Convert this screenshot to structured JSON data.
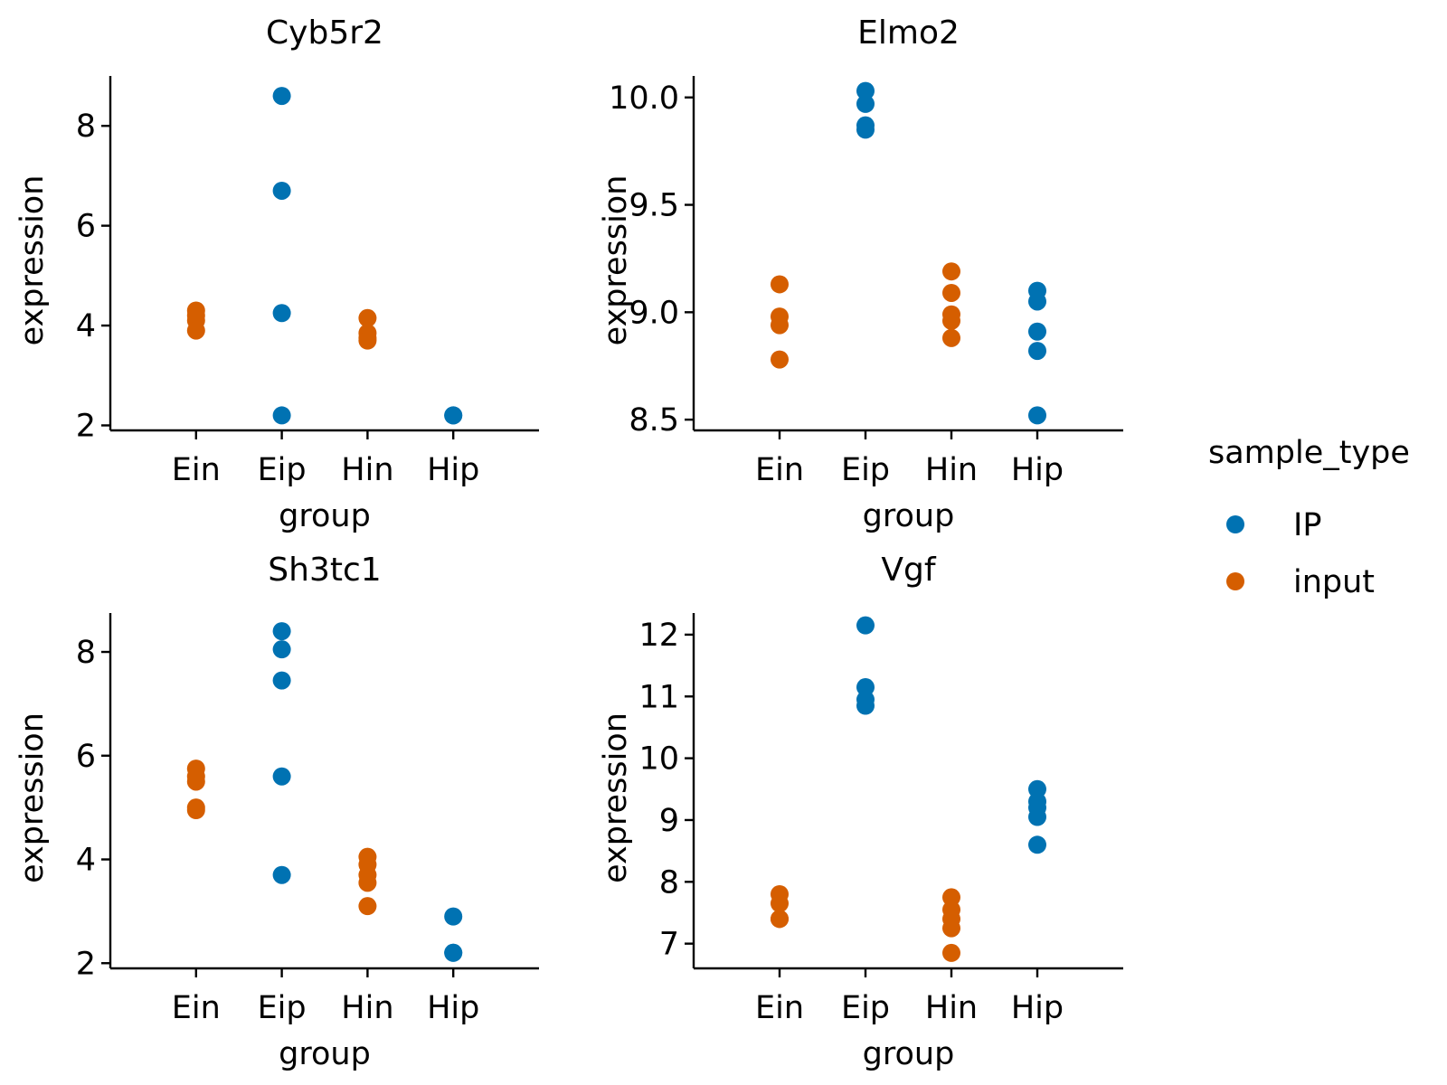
{
  "legend": {
    "title": "sample_type",
    "entries": [
      {
        "label": "IP",
        "color": "#0072B2"
      },
      {
        "label": "input",
        "color": "#D55E00"
      }
    ]
  },
  "chart_data": [
    {
      "type": "scatter",
      "title": "Cyb5r2",
      "xlabel": "group",
      "ylabel": "expression",
      "categories": [
        "Ein",
        "Eip",
        "Hin",
        "Hip"
      ],
      "ylim": [
        1.9,
        9.0
      ],
      "yticks": [
        2,
        4,
        6,
        8
      ],
      "ytick_labels": [
        "2",
        "4",
        "6",
        "8"
      ],
      "series": [
        {
          "name": "IP",
          "color": "#0072B2",
          "points": [
            [
              "Eip",
              8.6
            ],
            [
              "Eip",
              6.7
            ],
            [
              "Eip",
              4.25
            ],
            [
              "Eip",
              2.2
            ],
            [
              "Hip",
              2.2
            ],
            [
              "Hip",
              2.2
            ]
          ]
        },
        {
          "name": "input",
          "color": "#D55E00",
          "points": [
            [
              "Ein",
              4.3
            ],
            [
              "Ein",
              4.2
            ],
            [
              "Ein",
              4.1
            ],
            [
              "Ein",
              3.9
            ],
            [
              "Hin",
              4.15
            ],
            [
              "Hin",
              3.85
            ],
            [
              "Hin",
              3.75
            ],
            [
              "Hin",
              3.7
            ]
          ]
        }
      ]
    },
    {
      "type": "scatter",
      "title": "Elmo2",
      "xlabel": "group",
      "ylabel": "expression",
      "categories": [
        "Ein",
        "Eip",
        "Hin",
        "Hip"
      ],
      "ylim": [
        8.45,
        10.1
      ],
      "yticks": [
        8.5,
        9.0,
        9.5,
        10.0
      ],
      "ytick_labels": [
        "8.5",
        "9.0",
        "9.5",
        "10.0"
      ],
      "series": [
        {
          "name": "IP",
          "color": "#0072B2",
          "points": [
            [
              "Eip",
              10.03
            ],
            [
              "Eip",
              9.97
            ],
            [
              "Eip",
              9.87
            ],
            [
              "Eip",
              9.85
            ],
            [
              "Hip",
              9.1
            ],
            [
              "Hip",
              9.05
            ],
            [
              "Hip",
              8.91
            ],
            [
              "Hip",
              8.82
            ],
            [
              "Hip",
              8.52
            ]
          ]
        },
        {
          "name": "input",
          "color": "#D55E00",
          "points": [
            [
              "Ein",
              9.13
            ],
            [
              "Ein",
              8.98
            ],
            [
              "Ein",
              8.94
            ],
            [
              "Ein",
              8.78
            ],
            [
              "Hin",
              9.19
            ],
            [
              "Hin",
              9.09
            ],
            [
              "Hin",
              8.99
            ],
            [
              "Hin",
              8.96
            ],
            [
              "Hin",
              8.88
            ]
          ]
        }
      ]
    },
    {
      "type": "scatter",
      "title": "Sh3tc1",
      "xlabel": "group",
      "ylabel": "expression",
      "categories": [
        "Ein",
        "Eip",
        "Hin",
        "Hip"
      ],
      "ylim": [
        1.9,
        8.75
      ],
      "yticks": [
        2,
        4,
        6,
        8
      ],
      "ytick_labels": [
        "2",
        "4",
        "6",
        "8"
      ],
      "series": [
        {
          "name": "IP",
          "color": "#0072B2",
          "points": [
            [
              "Eip",
              8.4
            ],
            [
              "Eip",
              8.05
            ],
            [
              "Eip",
              7.45
            ],
            [
              "Eip",
              5.6
            ],
            [
              "Eip",
              3.7
            ],
            [
              "Hip",
              2.9
            ],
            [
              "Hip",
              2.2
            ],
            [
              "Hip",
              2.2
            ]
          ]
        },
        {
          "name": "input",
          "color": "#D55E00",
          "points": [
            [
              "Ein",
              5.75
            ],
            [
              "Ein",
              5.6
            ],
            [
              "Ein",
              5.5
            ],
            [
              "Ein",
              5.0
            ],
            [
              "Ein",
              4.95
            ],
            [
              "Hin",
              4.05
            ],
            [
              "Hin",
              3.9
            ],
            [
              "Hin",
              3.7
            ],
            [
              "Hin",
              3.55
            ],
            [
              "Hin",
              3.1
            ]
          ]
        }
      ]
    },
    {
      "type": "scatter",
      "title": "Vgf",
      "xlabel": "group",
      "ylabel": "expression",
      "categories": [
        "Ein",
        "Eip",
        "Hin",
        "Hip"
      ],
      "ylim": [
        6.6,
        12.35
      ],
      "yticks": [
        7,
        8,
        9,
        10,
        11,
        12
      ],
      "ytick_labels": [
        "7",
        "8",
        "9",
        "10",
        "11",
        "12"
      ],
      "series": [
        {
          "name": "IP",
          "color": "#0072B2",
          "points": [
            [
              "Eip",
              12.15
            ],
            [
              "Eip",
              11.15
            ],
            [
              "Eip",
              10.95
            ],
            [
              "Eip",
              10.85
            ],
            [
              "Hip",
              9.5
            ],
            [
              "Hip",
              9.3
            ],
            [
              "Hip",
              9.2
            ],
            [
              "Hip",
              9.05
            ],
            [
              "Hip",
              8.6
            ]
          ]
        },
        {
          "name": "input",
          "color": "#D55E00",
          "points": [
            [
              "Ein",
              7.8
            ],
            [
              "Ein",
              7.65
            ],
            [
              "Ein",
              7.4
            ],
            [
              "Ein",
              7.4
            ],
            [
              "Hin",
              7.75
            ],
            [
              "Hin",
              7.55
            ],
            [
              "Hin",
              7.4
            ],
            [
              "Hin",
              7.25
            ],
            [
              "Hin",
              6.85
            ]
          ]
        }
      ]
    }
  ]
}
